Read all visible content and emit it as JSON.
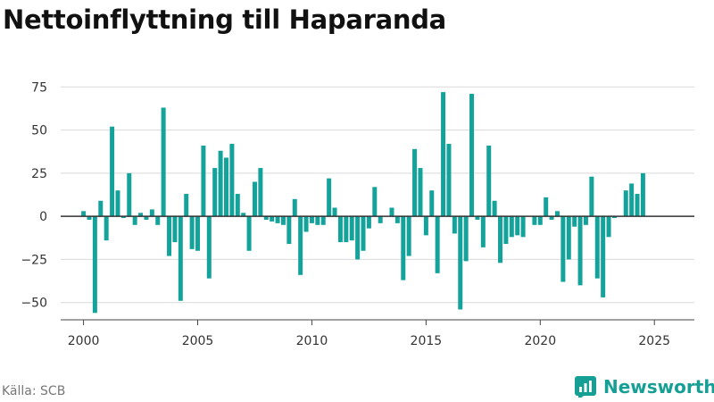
{
  "title": "Nettoinflyttning till Haparanda",
  "source": "Källa: SCB",
  "brand": {
    "name": "Newsworthy",
    "icon": "newsworthy-logo-icon"
  },
  "colors": {
    "bar": "#13a39b",
    "grid": "#d9d9d9",
    "zero_line": "#333333",
    "brand": "#16a095"
  },
  "chart_data": {
    "type": "bar",
    "title": "Nettoinflyttning till Haparanda",
    "xlabel": "",
    "ylabel": "",
    "ylim": [
      -60,
      85
    ],
    "xlim": [
      1999,
      2026.75
    ],
    "grid": true,
    "yticks": [
      -50,
      -25,
      0,
      25,
      50,
      75
    ],
    "ytick_labels": [
      "−50",
      "−25",
      "0",
      "25",
      "50",
      "75"
    ],
    "xticks": [
      2000,
      2005,
      2010,
      2015,
      2020,
      2025
    ],
    "xtick_labels": [
      "2000",
      "2005",
      "2010",
      "2015",
      "2020",
      "2025"
    ],
    "x_start": 2000.0,
    "x_step": 0.25,
    "values": [
      3,
      -2,
      -56,
      9,
      -14,
      52,
      15,
      -1,
      25,
      -5,
      2,
      -2,
      4,
      -5,
      63,
      -23,
      -15,
      -49,
      13,
      -19,
      -20,
      41,
      -36,
      28,
      38,
      34,
      42,
      13,
      2,
      -20,
      20,
      28,
      -2,
      -3,
      -4,
      -5,
      -16,
      10,
      -34,
      -9,
      -4,
      -5,
      -5,
      22,
      5,
      -15,
      -15,
      -14,
      -25,
      -20,
      -7,
      17,
      -4,
      0,
      5,
      -4,
      -37,
      -23,
      39,
      28,
      -11,
      15,
      -33,
      72,
      42,
      -10,
      -54,
      -26,
      71,
      -2,
      -18,
      41,
      9,
      -27,
      -16,
      -12,
      -11,
      -12,
      0,
      -5,
      -5,
      11,
      -2,
      3,
      -38,
      -25,
      -6,
      -40,
      -5,
      23,
      -36,
      -47,
      -12,
      -1,
      0,
      15,
      19,
      13,
      25
    ]
  }
}
